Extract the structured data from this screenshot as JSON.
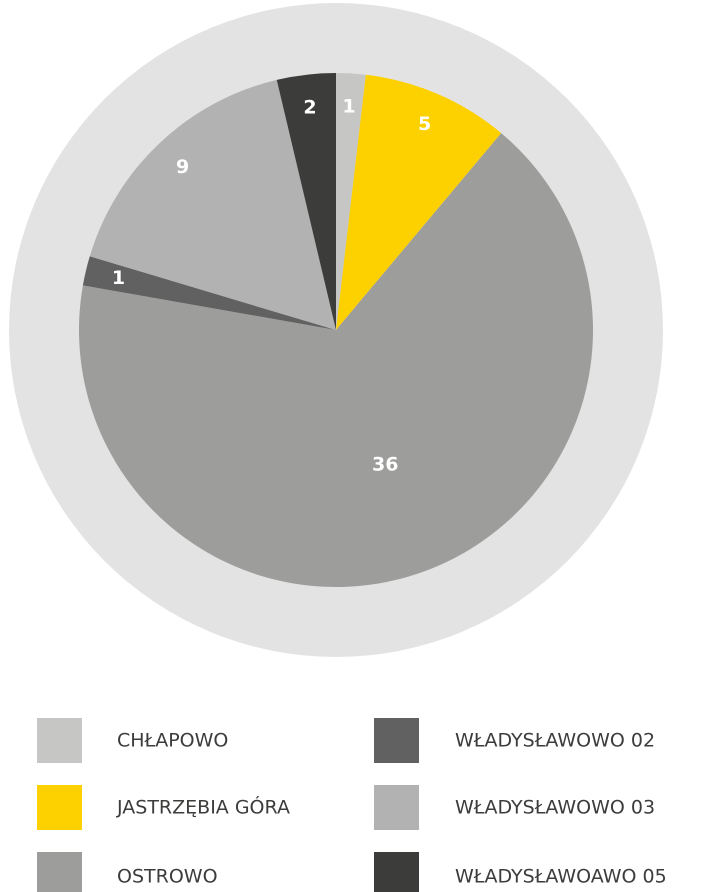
{
  "chart_data": {
    "type": "pie",
    "categories": [
      "CHŁAPOWO",
      "JASTRZĘBIA GÓRA",
      "OSTROWO",
      "WŁADYSŁAWOWO 02",
      "WŁADYSŁAWOWO 03",
      "WŁADYSŁAWOAWO 05"
    ],
    "values": [
      1,
      5,
      36,
      1,
      9,
      2
    ],
    "colors": [
      "#c6c6c5",
      "#fdd000",
      "#9d9d9c",
      "#616161",
      "#b2b2b2",
      "#3c3c3b"
    ]
  }
}
